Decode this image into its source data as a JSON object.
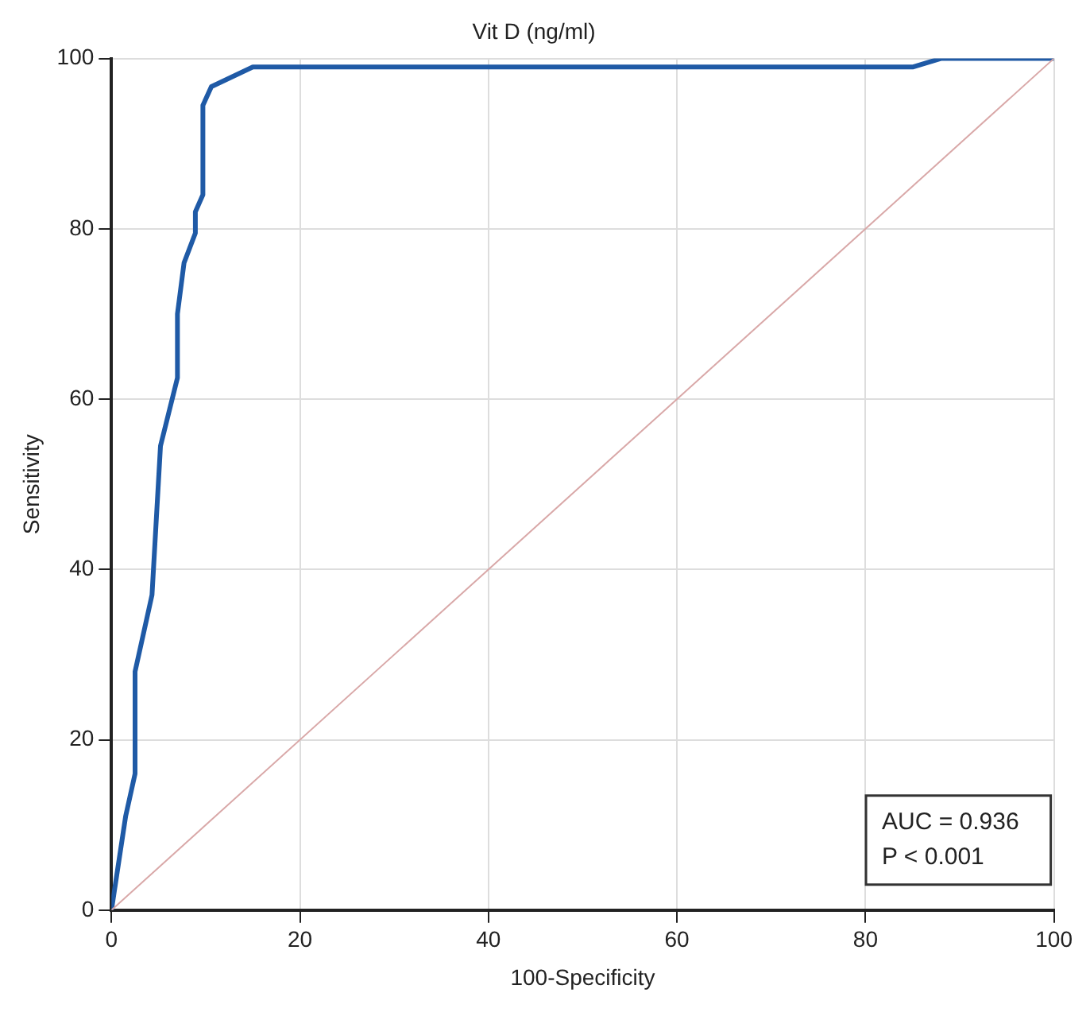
{
  "chart_data": {
    "type": "line",
    "title": "Vit D (ng/ml)",
    "xlabel": "100-Specificity",
    "ylabel": "Sensitivity",
    "series": [
      {
        "color": "#1f5aa6",
        "x": [
          0,
          1.5,
          2.5,
          2.5,
          4.3,
          5.2,
          7,
          7,
          7.7,
          8.9,
          8.9,
          9.7,
          9.7,
          10.6,
          15,
          85,
          88,
          100
        ],
        "values": [
          0,
          11,
          16,
          28,
          37,
          54.5,
          62.5,
          70,
          76,
          79.5,
          82,
          84,
          94.5,
          96.7,
          99,
          99,
          100,
          100
        ]
      },
      {
        "color": "#d9a8a8",
        "x": [
          0,
          100
        ],
        "values": [
          0,
          100
        ]
      }
    ],
    "xlim": [
      0,
      100
    ],
    "ylim": [
      0,
      100
    ],
    "xticks": [
      0,
      20,
      40,
      60,
      80,
      100
    ],
    "yticks": [
      0,
      20,
      40,
      60,
      80,
      100
    ],
    "grid": true,
    "legend": false,
    "marker": "none",
    "line_style": "solid",
    "annotations": [
      "AUC = 0.936",
      "P < 0.001"
    ]
  }
}
